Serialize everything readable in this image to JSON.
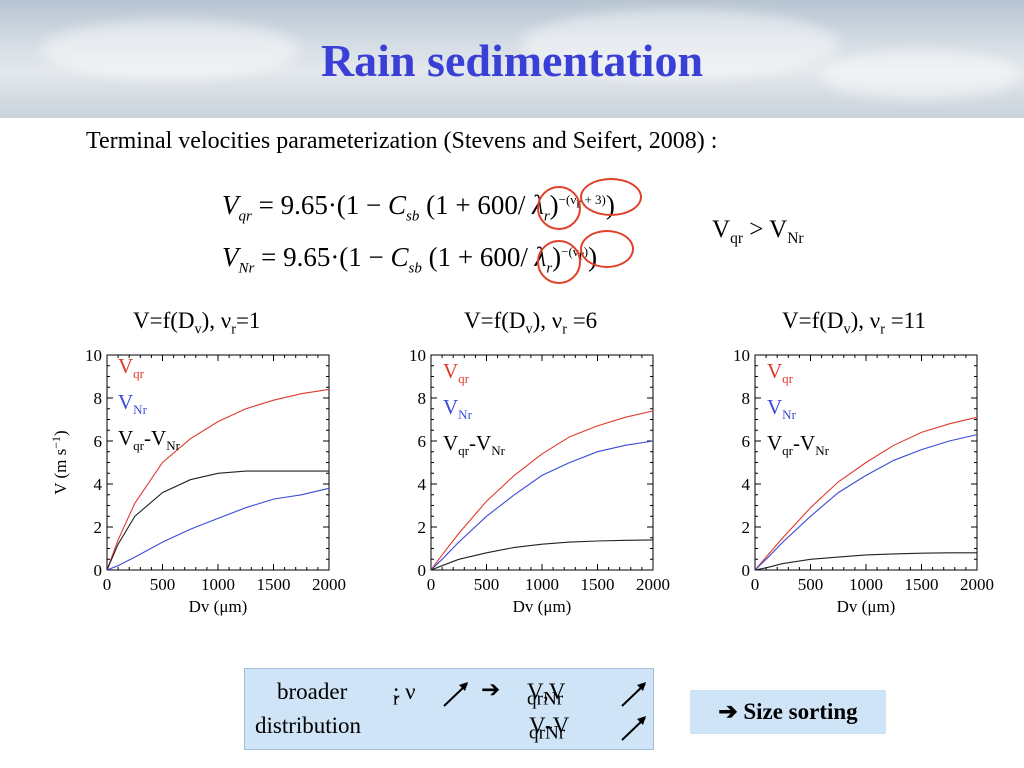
{
  "slide": {
    "title": "Rain sedimentation",
    "intro": "Terminal velocities parameterization (Stevens and Seifert, 2008) :",
    "equations": {
      "line1": {
        "lhs_V": "V",
        "lhs_sub": "qr",
        "rhs_a": "= 9.65·(1 − ",
        "C": "C",
        "C_sub": "sb",
        "rhs_b": "(1 + 600/ ",
        "lambda": "λ",
        "lambda_sub": "r",
        "close1": ")",
        "exponent": "−(ν",
        "exp_sub": "r",
        "exp_tail": " + 3)",
        "close2": ")"
      },
      "line2": {
        "lhs_V": "V",
        "lhs_sub": "Nr",
        "rhs_a": "= 9.65·(1 − ",
        "C": "C",
        "C_sub": "sb",
        "rhs_b": "(1 + 600/ ",
        "lambda": "λ",
        "lambda_sub": "r",
        "close1": ")",
        "exponent": "−(ν",
        "exp_sub": "r",
        "exp_tail": ")",
        "close2": ")"
      }
    },
    "inequality": {
      "a": "V",
      "a_sub": "qr",
      "op": " > V",
      "b_sub": "Nr"
    },
    "summary_box": {
      "broader": "broader",
      "distribution": "distribution",
      "colon_nu": ": ν",
      "nu_sub": "r",
      "arrow": "➔",
      "vq": "V",
      "vq_sub": "qr",
      "comma": " ,V",
      "vn_sub": "Nr",
      "diff_v": "V",
      "diff_sub1": "qr",
      "diff_mid": "-V",
      "diff_sub2": "Nr"
    },
    "size_sorting": "➔ Size sorting",
    "colors": {
      "title": "#3a3fd6",
      "red": "#e03a2e",
      "blue": "#3b4bd6",
      "black": "#222222",
      "circle": "#e0402a",
      "box": "#cfe4f6"
    }
  },
  "chart_data": [
    {
      "type": "line",
      "title_prefix": "V=f(D",
      "title_sub1": "v",
      "title_mid": "), ν",
      "title_sub2": "r",
      "title_suffix": "=1",
      "xlabel": "Dv (μm)",
      "ylabel": "V (m s",
      "ylabel_sup": "−1",
      "ylabel_close": ")",
      "xlim": [
        0,
        2000
      ],
      "ylim": [
        0,
        10
      ],
      "xticks": [
        "0",
        "500",
        "1000",
        "1500",
        "2000"
      ],
      "yticks": [
        "0",
        "2",
        "4",
        "6",
        "8",
        "10"
      ],
      "legend": {
        "red": "V",
        "red_sub": "qr",
        "blue": "V",
        "blue_sub": "Nr",
        "black": "V",
        "black_sub1": "qr",
        "black_mid": "-V",
        "black_sub2": "Nr"
      },
      "series": [
        {
          "color": "red",
          "x": [
            0,
            100,
            250,
            500,
            750,
            1000,
            1250,
            1500,
            1750,
            2000
          ],
          "y": [
            0,
            1.4,
            3.1,
            5.0,
            6.1,
            6.9,
            7.5,
            7.9,
            8.2,
            8.4
          ]
        },
        {
          "color": "blue",
          "x": [
            0,
            100,
            250,
            500,
            750,
            1000,
            1250,
            1500,
            1750,
            2000
          ],
          "y": [
            0,
            0.2,
            0.6,
            1.3,
            1.9,
            2.4,
            2.9,
            3.3,
            3.5,
            3.8
          ]
        },
        {
          "color": "black",
          "x": [
            0,
            100,
            250,
            500,
            750,
            1000,
            1250,
            1500,
            1750,
            2000
          ],
          "y": [
            0,
            1.2,
            2.5,
            3.6,
            4.2,
            4.5,
            4.6,
            4.6,
            4.6,
            4.6
          ]
        }
      ]
    },
    {
      "type": "line",
      "title_prefix": "V=f(D",
      "title_sub1": "v",
      "title_mid": "), ν",
      "title_sub2": "r",
      "title_suffix": " =6",
      "xlabel": "Dv (μm)",
      "ylabel": "",
      "xlim": [
        0,
        2000
      ],
      "ylim": [
        0,
        10
      ],
      "xticks": [
        "0",
        "500",
        "1000",
        "1500",
        "2000"
      ],
      "yticks": [
        "0",
        "2",
        "4",
        "6",
        "8",
        "10"
      ],
      "legend": {
        "red": "V",
        "red_sub": "qr",
        "blue": "V",
        "blue_sub": "Nr",
        "black": "V",
        "black_sub1": "qr",
        "black_mid": "-V",
        "black_sub2": "Nr"
      },
      "series": [
        {
          "color": "red",
          "x": [
            0,
            100,
            250,
            500,
            750,
            1000,
            1250,
            1500,
            1750,
            2000
          ],
          "y": [
            0,
            0.7,
            1.7,
            3.2,
            4.4,
            5.4,
            6.2,
            6.7,
            7.1,
            7.4
          ]
        },
        {
          "color": "blue",
          "x": [
            0,
            100,
            250,
            500,
            750,
            1000,
            1250,
            1500,
            1750,
            2000
          ],
          "y": [
            0,
            0.5,
            1.3,
            2.5,
            3.5,
            4.4,
            5.0,
            5.5,
            5.8,
            6.0
          ]
        },
        {
          "color": "black",
          "x": [
            0,
            100,
            250,
            500,
            750,
            1000,
            1250,
            1500,
            1750,
            2000
          ],
          "y": [
            0,
            0.2,
            0.5,
            0.8,
            1.05,
            1.2,
            1.3,
            1.35,
            1.38,
            1.4
          ]
        }
      ]
    },
    {
      "type": "line",
      "title_prefix": "V=f(D",
      "title_sub1": "v",
      "title_mid": "), ν",
      "title_sub2": "r",
      "title_suffix": " =11",
      "xlabel": "Dv (μm)",
      "ylabel": "",
      "xlim": [
        0,
        2000
      ],
      "ylim": [
        0,
        10
      ],
      "xticks": [
        "0",
        "500",
        "1000",
        "1500",
        "2000"
      ],
      "yticks": [
        "0",
        "2",
        "4",
        "6",
        "8",
        "10"
      ],
      "legend": {
        "red": "V",
        "red_sub": "qr",
        "blue": "V",
        "blue_sub": "Nr",
        "black": "V",
        "black_sub1": "qr",
        "black_mid": "-V",
        "black_sub2": "Nr"
      },
      "series": [
        {
          "color": "red",
          "x": [
            0,
            100,
            250,
            500,
            750,
            1000,
            1250,
            1500,
            1750,
            2000
          ],
          "y": [
            0,
            0.6,
            1.5,
            2.9,
            4.1,
            5.0,
            5.8,
            6.4,
            6.8,
            7.1
          ]
        },
        {
          "color": "blue",
          "x": [
            0,
            100,
            250,
            500,
            750,
            1000,
            1250,
            1500,
            1750,
            2000
          ],
          "y": [
            0,
            0.5,
            1.3,
            2.5,
            3.6,
            4.4,
            5.1,
            5.6,
            6.0,
            6.3
          ]
        },
        {
          "color": "black",
          "x": [
            0,
            100,
            250,
            500,
            750,
            1000,
            1250,
            1500,
            1750,
            2000
          ],
          "y": [
            0,
            0.1,
            0.3,
            0.5,
            0.6,
            0.7,
            0.75,
            0.78,
            0.8,
            0.8
          ]
        }
      ]
    }
  ]
}
